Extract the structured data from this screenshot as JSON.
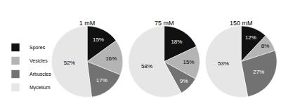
{
  "chart_data": [
    {
      "type": "pie",
      "title": "1 mM",
      "categories": [
        "Spores",
        "Vesicles",
        "Arbuscles",
        "Mycelium"
      ],
      "values": [
        15,
        16,
        17,
        52
      ],
      "value_labels": [
        "15%",
        "16%",
        "17%",
        "52%"
      ],
      "colors": [
        "#111111",
        "#b4b4b4",
        "#727272",
        "#e6e6e6"
      ],
      "data_labels": true,
      "legend": "bottom left"
    },
    {
      "type": "pie",
      "title": "75 mM",
      "categories": [
        "Spores",
        "Vesicles",
        "Arbuscles",
        "Mycelium"
      ],
      "values": [
        18,
        15,
        9,
        58
      ],
      "value_labels": [
        "18%",
        "15%",
        "9%",
        "58%"
      ],
      "colors": [
        "#111111",
        "#b4b4b4",
        "#727272",
        "#e6e6e6"
      ],
      "data_labels": true
    },
    {
      "type": "pie",
      "title": "150 mM",
      "categories": [
        "Spores",
        "Vesicles",
        "Arbuscles",
        "Mycelium"
      ],
      "values": [
        12,
        8,
        27,
        53
      ],
      "value_labels": [
        "12%",
        "8%",
        "27%",
        "53%"
      ],
      "colors": [
        "#111111",
        "#b4b4b4",
        "#727272",
        "#e6e6e6"
      ],
      "data_labels": true
    }
  ]
}
